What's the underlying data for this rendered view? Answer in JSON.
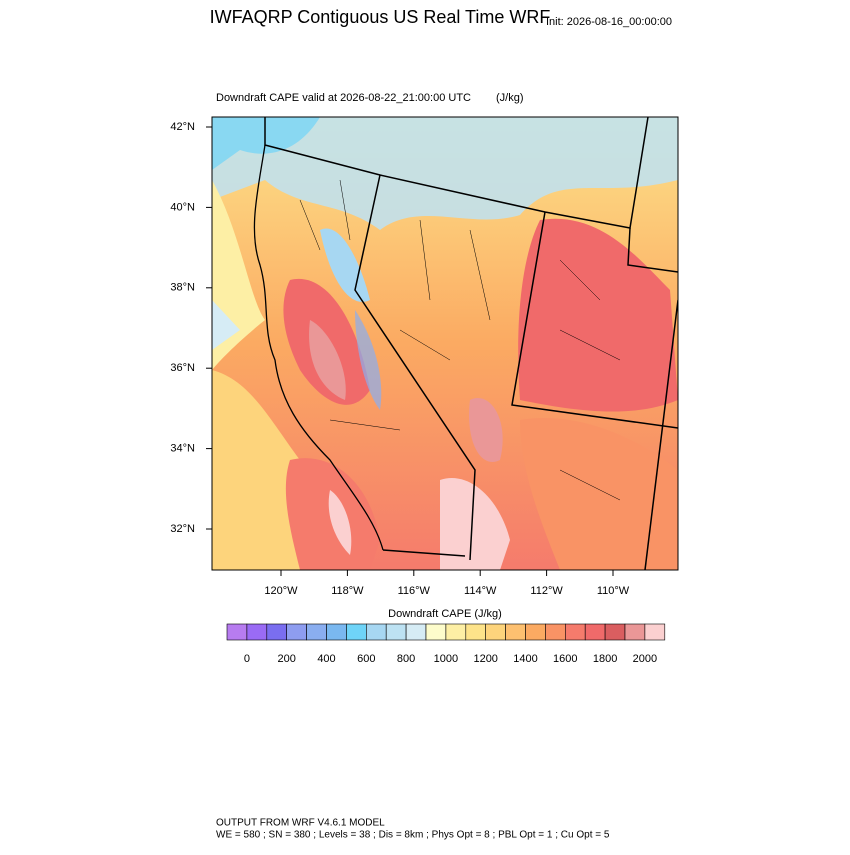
{
  "header": {
    "title": "IWFAQRP Contiguous US Real Time WRF",
    "init": "Init: 2026-08-16_00:00:00"
  },
  "map": {
    "subtitle": "Downdraft CAPE valid at 2026-08-22_21:00:00 UTC",
    "units": "(J/kg)",
    "lat_ticks": [
      {
        "value": 42,
        "label": "42°N"
      },
      {
        "value": 40,
        "label": "40°N"
      },
      {
        "value": 38,
        "label": "38°N"
      },
      {
        "value": 36,
        "label": "36°N"
      },
      {
        "value": 34,
        "label": "34°N"
      },
      {
        "value": 32,
        "label": "32°N"
      }
    ],
    "lon_ticks": [
      {
        "value": -120,
        "label": "120°W"
      },
      {
        "value": -118,
        "label": "118°W"
      },
      {
        "value": -116,
        "label": "116°W"
      },
      {
        "value": -114,
        "label": "114°W"
      },
      {
        "value": -112,
        "label": "112°W"
      },
      {
        "value": -110,
        "label": "110°W"
      }
    ]
  },
  "colorbar": {
    "title": "Downdraft CAPE  (J/kg)",
    "ticks": [
      0,
      200,
      400,
      600,
      800,
      1000,
      1200,
      1400,
      1600,
      1800,
      2000
    ],
    "colors": [
      "#b77cf0",
      "#9a6bf5",
      "#7a6ef0",
      "#8e9df0",
      "#8aaef0",
      "#7ab8f0",
      "#6fd4f8",
      "#a7d7f2",
      "#bde2f3",
      "#d6ecf5",
      "#fdfccb",
      "#fdefa5",
      "#fde38a",
      "#fdd47c",
      "#fdc070",
      "#fbaa62",
      "#f99365",
      "#f57b6c",
      "#f06a6a",
      "#da5e60",
      "#ea9797",
      "#fbd0d0"
    ]
  },
  "footer": {
    "line1": "OUTPUT FROM WRF V4.6.1 MODEL",
    "line2": "WE = 580 ; SN = 380 ; Levels = 38 ; Dis = 8km ; Phys Opt = 8 ; PBL Opt = 1 ; Cu Opt = 5"
  }
}
